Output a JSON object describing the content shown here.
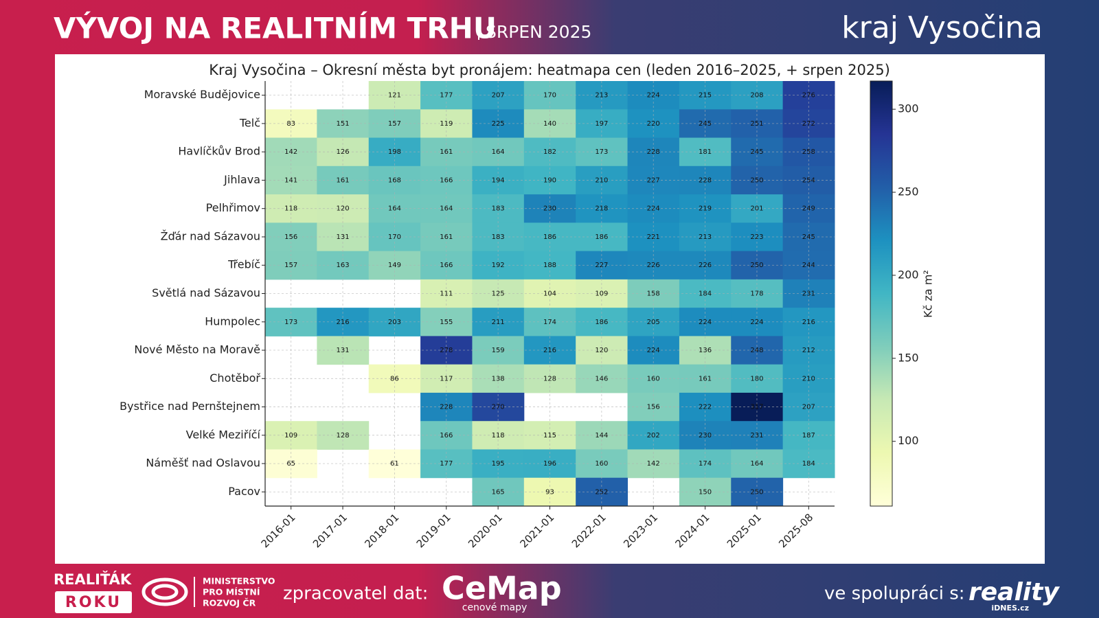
{
  "header": {
    "title": "VÝVOJ NA REALITNÍM TRHU",
    "subtitle": "SRPEN 2025",
    "region": "kraj Vysočina"
  },
  "chart_data": {
    "type": "heatmap",
    "title": "Kraj Vysočina – Okresní města byt pronájem: heatmapa cen (leden 2016–2025, + srpen 2025)",
    "categories": [
      "2016-01",
      "2017-01",
      "2018-01",
      "2019-01",
      "2020-01",
      "2021-01",
      "2022-01",
      "2023-01",
      "2024-01",
      "2025-01",
      "2025-08"
    ],
    "rows": [
      "Moravské Budějovice",
      "Telč",
      "Havlíčkův Brod",
      "Jihlava",
      "Pelhřimov",
      "Žďár nad Sázavou",
      "Třebíč",
      "Světlá nad Sázavou",
      "Humpolec",
      "Nové Město na Moravě",
      "Chotěboř",
      "Bystřice nad Pernštejnem",
      "Velké Meziříčí",
      "Náměšť nad Oslavou",
      "Pacov"
    ],
    "values": [
      [
        null,
        null,
        121,
        177,
        207,
        170,
        213,
        224,
        215,
        208,
        276
      ],
      [
        83,
        151,
        157,
        119,
        225,
        140,
        197,
        220,
        245,
        251,
        272
      ],
      [
        142,
        126,
        198,
        161,
        164,
        182,
        173,
        228,
        181,
        245,
        258
      ],
      [
        141,
        161,
        168,
        166,
        194,
        190,
        210,
        227,
        228,
        250,
        254
      ],
      [
        118,
        120,
        164,
        164,
        183,
        230,
        218,
        224,
        219,
        201,
        249
      ],
      [
        156,
        131,
        170,
        161,
        183,
        186,
        186,
        221,
        213,
        223,
        245
      ],
      [
        157,
        163,
        149,
        166,
        192,
        188,
        227,
        226,
        226,
        250,
        244
      ],
      [
        null,
        null,
        null,
        111,
        125,
        104,
        109,
        158,
        184,
        178,
        231
      ],
      [
        173,
        216,
        203,
        155,
        211,
        174,
        186,
        205,
        224,
        224,
        216
      ],
      [
        null,
        131,
        null,
        278,
        159,
        216,
        120,
        224,
        136,
        248,
        212
      ],
      [
        null,
        null,
        86,
        117,
        138,
        128,
        146,
        160,
        161,
        180,
        210
      ],
      [
        null,
        null,
        null,
        228,
        270,
        null,
        null,
        156,
        222,
        317,
        207
      ],
      [
        109,
        128,
        null,
        166,
        118,
        115,
        144,
        202,
        230,
        231,
        187
      ],
      [
        65,
        null,
        61,
        177,
        195,
        196,
        160,
        142,
        174,
        164,
        184
      ],
      [
        null,
        null,
        null,
        null,
        165,
        93,
        252,
        null,
        150,
        250,
        null
      ]
    ],
    "colormap": [
      "#ffffd9",
      "#edf8b1",
      "#c7e9b4",
      "#7fcdbb",
      "#41b6c4",
      "#1d91c0",
      "#225ea8",
      "#253494",
      "#081d58"
    ],
    "clim": [
      61,
      317
    ],
    "colorbar_ticks": [
      100,
      150,
      200,
      250,
      300
    ],
    "colorbar_label": "Kč za m²",
    "grid": true
  },
  "footer": {
    "award_top": "REALIŤÁK",
    "award_bottom": "ROKU",
    "ministry": [
      "MINISTERSTVO",
      "PRO MÍSTNÍ",
      "ROZVOJ ČR"
    ],
    "processor_label": "zpracovatel dat:",
    "processor_name": "CeMap",
    "processor_tagline": "cenové mapy",
    "partner_label": "ve spolupráci s:",
    "partner_name": "reality",
    "partner_domain": "iDNES.cz"
  }
}
